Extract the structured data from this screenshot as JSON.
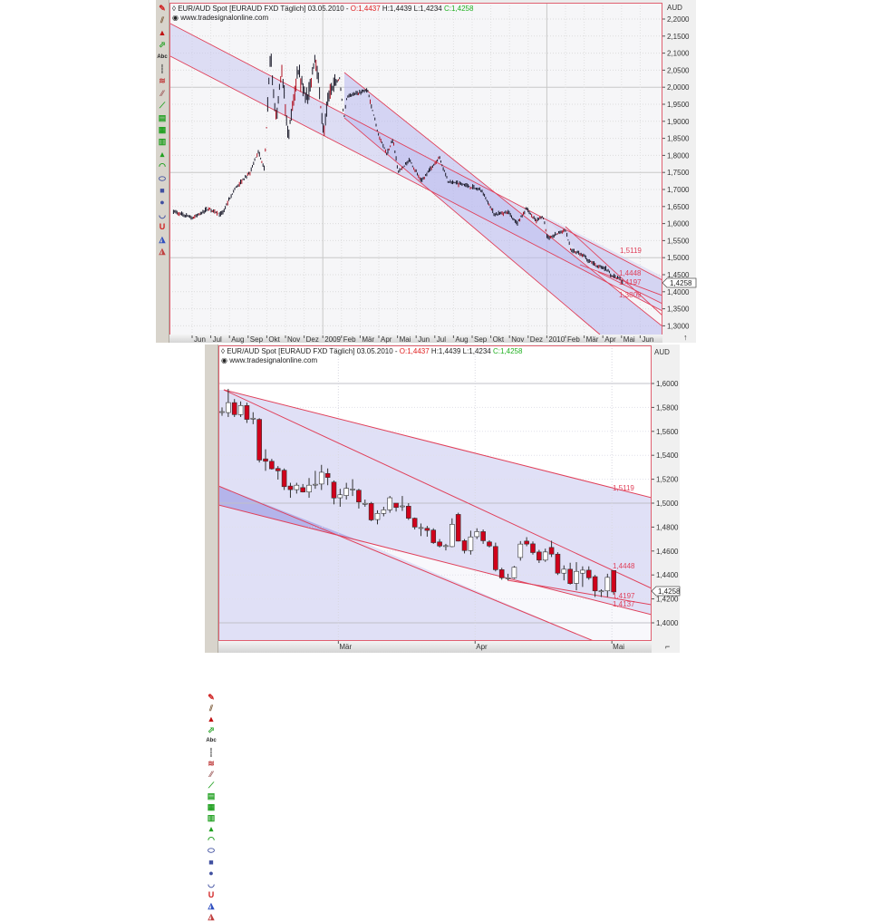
{
  "top_chart": {
    "header": {
      "symbol": "EUR/AUD Spot [EURAUD FXD  Täglich] 03.05.2010 - ",
      "open": "O:1,4437",
      "high_low": " H:1,4439 L:1,4234 ",
      "close": "C:1,4258",
      "source": "www.tradesignalonline.com"
    },
    "currency": "AUD",
    "current_price": "1,4258",
    "level_labels": [
      "1,5119",
      "1,4448",
      "1,4197",
      "1,3809"
    ],
    "colors": {
      "line": "#e0405a",
      "channel": "#c8c8f0",
      "bar": "#1a1a2a",
      "up": "#ffffff",
      "down": "#d0021b"
    }
  },
  "bottom_chart": {
    "header": {
      "symbol": "EUR/AUD Spot [EURAUD FXD  Täglich] 03.05.2010 - ",
      "open": "O:1,4437",
      "high_low": " H:1,4439 L:1,4234 ",
      "close": "C:1,4258",
      "source": "www.tradesignalonline.com"
    },
    "currency": "AUD",
    "current_price": "1,4258",
    "level_labels": [
      "1,5119",
      "1,4448",
      "1,4197",
      "1,4137"
    ]
  },
  "toolbar_icons": [
    "pencil-icon",
    "parallel-lines-icon",
    "stamp-icon",
    "arrow-icon",
    "text-abc-icon",
    "vertical-line-icon",
    "fibonacci-icon",
    "hatch-icon",
    "trendline-icon",
    "grid-icon",
    "calendar-icon",
    "bars-icon",
    "mountain-icon",
    "arc-icon",
    "ellipse-icon",
    "rectangle-icon",
    "circle-icon",
    "half-circle-icon",
    "magnet-icon",
    "ruler-icon",
    "ruler2-icon"
  ],
  "chart_data": [
    {
      "type": "line",
      "title": "EUR/AUD Spot [EURAUD FXD  Täglich] 03.05.2010",
      "ylabel": "AUD",
      "ylim": [
        1.28,
        2.25
      ],
      "y_ticks": [
        "2,2000",
        "2,1500",
        "2,1000",
        "2,0500",
        "2,0000",
        "1,9500",
        "1,9000",
        "1,8500",
        "1,8000",
        "1,7500",
        "1,7000",
        "1,6500",
        "1,6000",
        "1,5500",
        "1,5000",
        "1,4500",
        "1,4000",
        "1,3500",
        "1,3000"
      ],
      "x_ticks": [
        "Jun",
        "Jul",
        "Aug",
        "Sep",
        "Okt",
        "Nov",
        "Dez",
        "2009",
        "Feb",
        "Mär",
        "Apr",
        "Mai",
        "Jun",
        "Jul",
        "Aug",
        "Sep",
        "Okt",
        "Nov",
        "Dez",
        "2010",
        "Feb",
        "Mär",
        "Apr",
        "Mai",
        "Jun"
      ],
      "grid": true,
      "series": [
        {
          "points": [
            [
              "2008-05-01",
              1.635
            ],
            [
              "2008-06-02",
              1.617
            ],
            [
              "2008-06-28",
              1.644
            ],
            [
              "2008-07-18",
              1.626
            ],
            [
              "2008-08-11",
              1.706
            ],
            [
              "2008-09-04",
              1.75
            ],
            [
              "2008-09-17",
              1.812
            ],
            [
              "2008-09-27",
              1.76
            ],
            [
              "2008-10-07",
              2.105
            ],
            [
              "2008-10-13",
              1.945
            ],
            [
              "2008-10-17",
              1.91
            ],
            [
              "2008-10-25",
              2.065
            ],
            [
              "2008-11-05",
              1.857
            ],
            [
              "2008-11-21",
              2.043
            ],
            [
              "2008-12-07",
              1.963
            ],
            [
              "2008-12-19",
              2.1
            ],
            [
              "2009-01-02",
              1.866
            ],
            [
              "2009-01-12",
              1.99
            ],
            [
              "2009-01-28",
              2.025
            ],
            [
              "2009-02-05",
              1.91
            ],
            [
              "2009-02-10",
              1.975
            ],
            [
              "2009-03-13",
              1.99
            ],
            [
              "2009-04-01",
              1.857
            ],
            [
              "2009-04-14",
              1.804
            ],
            [
              "2009-04-24",
              1.848
            ],
            [
              "2009-05-02",
              1.75
            ],
            [
              "2009-05-20",
              1.786
            ],
            [
              "2009-06-10",
              1.724
            ],
            [
              "2009-07-08",
              1.795
            ],
            [
              "2009-07-22",
              1.724
            ],
            [
              "2009-08-16",
              1.715
            ],
            [
              "2009-09-16",
              1.697
            ],
            [
              "2009-10-07",
              1.626
            ],
            [
              "2009-10-28",
              1.635
            ],
            [
              "2009-11-13",
              1.6
            ],
            [
              "2009-11-28",
              1.644
            ],
            [
              "2009-12-14",
              1.608
            ],
            [
              "2009-12-25",
              1.622
            ],
            [
              "2010-01-02",
              1.555
            ],
            [
              "2010-02-01",
              1.582
            ],
            [
              "2010-02-10",
              1.52
            ],
            [
              "2010-02-25",
              1.511
            ],
            [
              "2010-03-21",
              1.476
            ],
            [
              "2010-04-06",
              1.467
            ],
            [
              "2010-04-16",
              1.445
            ],
            [
              "2010-04-27",
              1.44
            ],
            [
              "2010-05-03",
              1.4258
            ]
          ]
        }
      ]
    },
    {
      "type": "candlestick",
      "title": "EUR/AUD Spot [EURAUD FXD  Täglich] 03.05.2010",
      "ylabel": "AUD",
      "ylim": [
        1.39,
        1.61
      ],
      "y_ticks": [
        "1,6000",
        "1,5800",
        "1,5600",
        "1,5400",
        "1,5200",
        "1,5000",
        "1,4800",
        "1,4600",
        "1,4400",
        "1,4200",
        "1,4000"
      ],
      "x_ticks": [
        {
          "label": "Mär",
          "at_candle": 19
        },
        {
          "label": "Apr",
          "at_candle": 41
        },
        {
          "label": "Mai",
          "at_candle": 63
        }
      ],
      "grid": true,
      "ohlc": [
        [
          1.5765,
          1.58,
          1.573,
          1.5765
        ],
        [
          1.5757,
          1.5955,
          1.572,
          1.584
        ],
        [
          1.584,
          1.587,
          1.572,
          1.574
        ],
        [
          1.574,
          1.585,
          1.572,
          1.5816
        ],
        [
          1.5816,
          1.584,
          1.567,
          1.57
        ],
        [
          1.571,
          1.576,
          1.566,
          1.571
        ],
        [
          1.57,
          1.571,
          1.534,
          1.536
        ],
        [
          1.537,
          1.545,
          1.527,
          1.535
        ],
        [
          1.535,
          1.537,
          1.528,
          1.5287
        ],
        [
          1.529,
          1.531,
          1.5197,
          1.527
        ],
        [
          1.5275,
          1.529,
          1.511,
          1.5138
        ],
        [
          1.5143,
          1.517,
          1.5045,
          1.5113
        ],
        [
          1.5113,
          1.517,
          1.508,
          1.515
        ],
        [
          1.513,
          1.516,
          1.509,
          1.5093
        ],
        [
          1.5093,
          1.521,
          1.5045,
          1.515
        ],
        [
          1.5158,
          1.527,
          1.512,
          1.5158
        ],
        [
          1.516,
          1.532,
          1.511,
          1.5258
        ],
        [
          1.5248,
          1.529,
          1.515,
          1.5215
        ],
        [
          1.5176,
          1.519,
          1.499,
          1.5043
        ],
        [
          1.5045,
          1.512,
          1.497,
          1.507
        ],
        [
          1.5064,
          1.517,
          1.503,
          1.5124
        ],
        [
          1.5118,
          1.52,
          1.506,
          1.5118
        ],
        [
          1.5108,
          1.512,
          1.4955,
          1.501
        ],
        [
          1.4998,
          1.503,
          1.497,
          1.4998
        ],
        [
          1.4998,
          1.501,
          1.485,
          1.486
        ],
        [
          1.4863,
          1.494,
          1.4823,
          1.4914
        ],
        [
          1.4914,
          1.497,
          1.489,
          1.4944
        ],
        [
          1.4944,
          1.506,
          1.492,
          1.5045
        ],
        [
          1.5,
          1.5,
          1.493,
          1.4964
        ],
        [
          1.4977,
          1.506,
          1.4935,
          1.4977
        ],
        [
          1.4975,
          1.5,
          1.486,
          1.4874
        ],
        [
          1.4874,
          1.488,
          1.478,
          1.48
        ],
        [
          1.4796,
          1.483,
          1.4725,
          1.4796
        ],
        [
          1.479,
          1.481,
          1.472,
          1.4772
        ],
        [
          1.4775,
          1.479,
          1.466,
          1.467
        ],
        [
          1.4676,
          1.47,
          1.463,
          1.4642
        ],
        [
          1.4645,
          1.466,
          1.4605,
          1.4645
        ],
        [
          1.4637,
          1.4873,
          1.4632,
          1.4823
        ],
        [
          1.4906,
          1.492,
          1.468,
          1.4683
        ],
        [
          1.4686,
          1.47,
          1.458,
          1.4604
        ],
        [
          1.4604,
          1.477,
          1.457,
          1.4718
        ],
        [
          1.472,
          1.479,
          1.47,
          1.4762
        ],
        [
          1.4762,
          1.478,
          1.466,
          1.4686
        ],
        [
          1.4676,
          1.469,
          1.463,
          1.4642
        ],
        [
          1.4638,
          1.467,
          1.443,
          1.4444
        ],
        [
          1.4444,
          1.446,
          1.436,
          1.4376
        ],
        [
          1.4376,
          1.441,
          1.4355,
          1.4376
        ],
        [
          1.4376,
          1.4475,
          1.4368,
          1.4464
        ],
        [
          1.4546,
          1.4683,
          1.452,
          1.4658
        ],
        [
          1.4683,
          1.4716,
          1.464,
          1.4658
        ],
        [
          1.466,
          1.468,
          1.457,
          1.4587
        ],
        [
          1.4592,
          1.461,
          1.45,
          1.4524
        ],
        [
          1.4524,
          1.462,
          1.451,
          1.4592
        ],
        [
          1.463,
          1.4686,
          1.455,
          1.4574
        ],
        [
          1.4574,
          1.459,
          1.44,
          1.4415
        ],
        [
          1.4415,
          1.448,
          1.4355,
          1.4448
        ],
        [
          1.4448,
          1.4502,
          1.432,
          1.4328
        ],
        [
          1.433,
          1.4507,
          1.4272,
          1.443
        ],
        [
          1.4415,
          1.4472,
          1.43,
          1.444
        ],
        [
          1.444,
          1.4472,
          1.436,
          1.4376
        ],
        [
          1.4386,
          1.44,
          1.4216,
          1.4267
        ],
        [
          1.4267,
          1.428,
          1.4216,
          1.4267
        ],
        [
          1.4267,
          1.441,
          1.4216,
          1.438
        ],
        [
          1.4437,
          1.4439,
          1.4234,
          1.4258
        ]
      ]
    }
  ]
}
